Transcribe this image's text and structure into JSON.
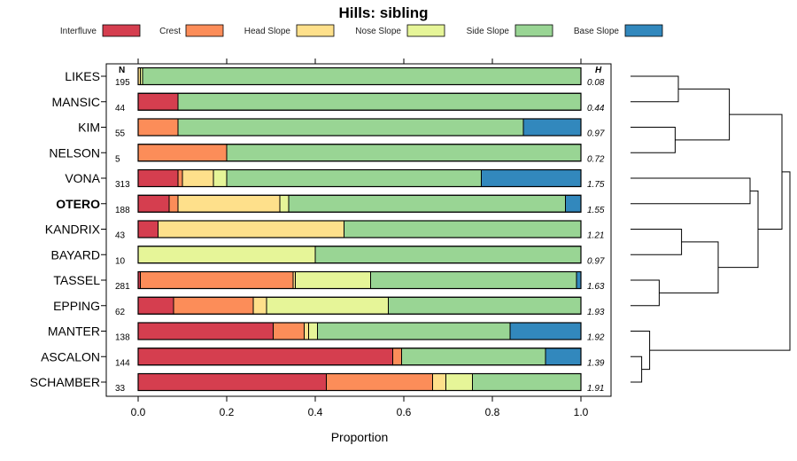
{
  "chart_data": {
    "type": "bar",
    "orientation": "horizontal-stacked",
    "title": "Hills: sibling",
    "xlabel": "Proportion",
    "xlim": [
      0,
      1
    ],
    "xticks": [
      0.0,
      0.2,
      0.4,
      0.6,
      0.8,
      1.0
    ],
    "xtick_labels": [
      "0.0",
      "0.2",
      "0.4",
      "0.6",
      "0.8",
      "1.0"
    ],
    "n_header": "N",
    "h_header": "H",
    "legend": [
      {
        "label": "Interfluve",
        "color": "#d53e4f"
      },
      {
        "label": "Crest",
        "color": "#fc8d59"
      },
      {
        "label": "Head Slope",
        "color": "#fee08b"
      },
      {
        "label": "Nose Slope",
        "color": "#e6f598"
      },
      {
        "label": "Side Slope",
        "color": "#99d594"
      },
      {
        "label": "Base Slope",
        "color": "#3288bd"
      }
    ],
    "categories": [
      "LIKES",
      "MANSIC",
      "KIM",
      "NELSON",
      "VONA",
      "OTERO",
      "KANDRIX",
      "BAYARD",
      "TASSEL",
      "EPPING",
      "MANTER",
      "ASCALON",
      "SCHAMBER"
    ],
    "highlight": "OTERO",
    "n": [
      "195",
      "44",
      "55",
      "5",
      "313",
      "188",
      "43",
      "10",
      "281",
      "62",
      "138",
      "144",
      "33"
    ],
    "h": [
      "0.08",
      "0.44",
      "0.97",
      "0.72",
      "1.75",
      "1.55",
      "1.21",
      "0.97",
      "1.63",
      "1.93",
      "1.92",
      "1.39",
      "1.91"
    ],
    "series": [
      {
        "name": "Interfluve",
        "values": [
          0.0,
          0.09,
          0.0,
          0.0,
          0.09,
          0.07,
          0.045,
          0.0,
          0.005,
          0.08,
          0.305,
          0.575,
          0.425
        ]
      },
      {
        "name": "Crest",
        "values": [
          0.0,
          0.0,
          0.09,
          0.2,
          0.01,
          0.02,
          0.0,
          0.0,
          0.345,
          0.18,
          0.07,
          0.02,
          0.24
        ]
      },
      {
        "name": "Head Slope",
        "values": [
          0.005,
          0.0,
          0.0,
          0.0,
          0.07,
          0.23,
          0.42,
          0.0,
          0.005,
          0.03,
          0.01,
          0.0,
          0.03
        ]
      },
      {
        "name": "Nose Slope",
        "values": [
          0.005,
          0.0,
          0.0,
          0.0,
          0.03,
          0.02,
          0.0,
          0.4,
          0.17,
          0.275,
          0.02,
          0.0,
          0.06
        ]
      },
      {
        "name": "Side Slope",
        "values": [
          0.99,
          0.91,
          0.78,
          0.8,
          0.575,
          0.625,
          0.535,
          0.6,
          0.465,
          0.435,
          0.435,
          0.325,
          0.245
        ]
      },
      {
        "name": "Base Slope",
        "values": [
          0.0,
          0.0,
          0.13,
          0.0,
          0.225,
          0.035,
          0.0,
          0.0,
          0.01,
          0.0,
          0.16,
          0.08,
          0.0
        ]
      }
    ],
    "dendrogram": {
      "merges": [
        [
          0,
          1,
          0.3
        ],
        [
          2,
          3,
          0.28
        ],
        [
          0,
          2,
          0.62
        ],
        [
          4,
          5,
          0.75
        ],
        [
          6,
          7,
          0.32
        ],
        [
          8,
          9,
          0.18
        ],
        [
          6,
          8,
          0.55
        ],
        [
          4,
          6,
          0.8
        ],
        [
          0,
          4,
          0.95
        ],
        [
          11,
          12,
          0.07
        ],
        [
          10,
          11,
          0.12
        ],
        [
          0,
          10,
          1.0
        ]
      ]
    }
  }
}
